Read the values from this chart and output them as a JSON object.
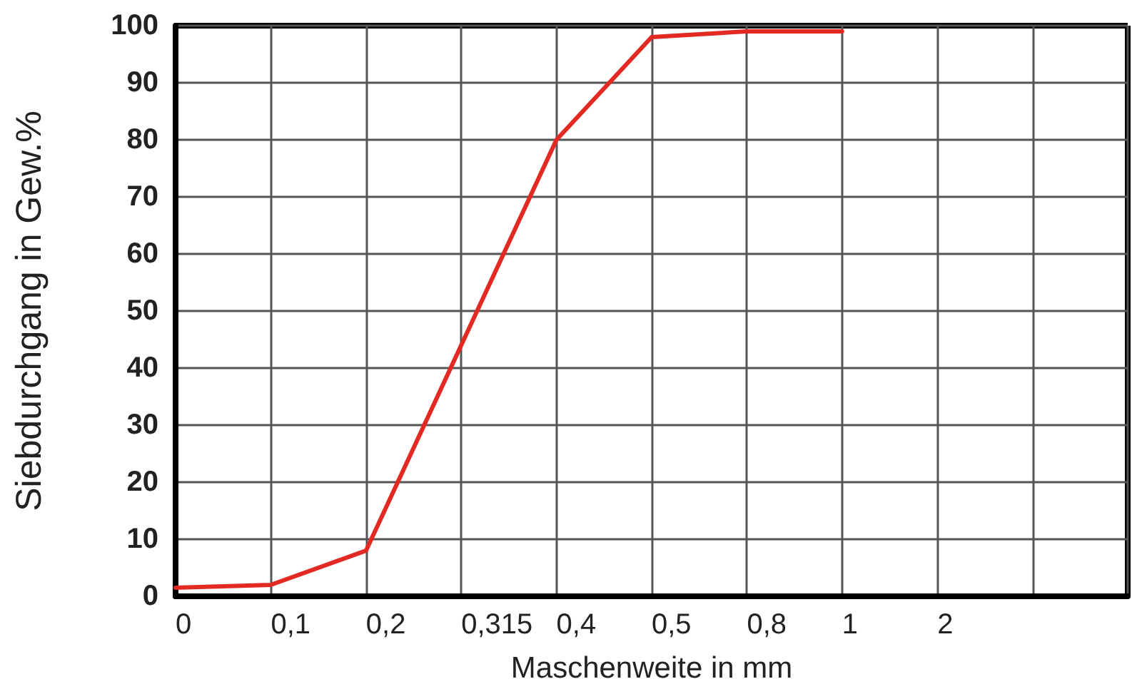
{
  "chart_data": {
    "type": "line",
    "xlabel": "Maschenweite in mm",
    "ylabel": "Siebdurchgang in Gew.%",
    "categories": [
      "0",
      "0,1",
      "0,2",
      "0,315",
      "0,4",
      "0,5",
      "0,8",
      "1",
      "2",
      null,
      null
    ],
    "series": [
      {
        "color": "#e32a22",
        "values": [
          1.5,
          2,
          8,
          44,
          80,
          98,
          99,
          99,
          null,
          null,
          null
        ]
      }
    ],
    "ylim": [
      0,
      100
    ],
    "yticks": [
      0,
      10,
      20,
      30,
      40,
      50,
      60,
      70,
      80,
      90,
      100
    ],
    "grid": true,
    "marker": "none",
    "line_style": "solid"
  }
}
